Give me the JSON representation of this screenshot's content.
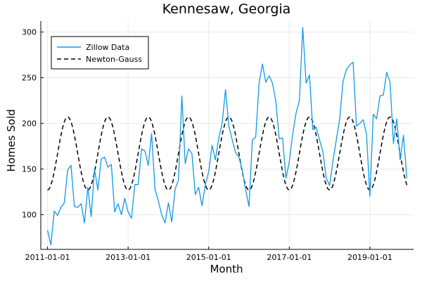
{
  "chart_data": {
    "type": "line",
    "title": "Kennesaw, Georgia",
    "xlabel": "Month",
    "ylabel": "Homes Sold",
    "x_ticks": [
      "2011-01-01",
      "2013-01-01",
      "2015-01-01",
      "2017-01-01",
      "2019-01-01"
    ],
    "y_ticks": [
      100,
      150,
      200,
      250,
      300
    ],
    "xlim": [
      "2010-11-01",
      "2020-02-01"
    ],
    "ylim": [
      62,
      312
    ],
    "grid": true,
    "legend_position": "top-left",
    "series": [
      {
        "name": "Zillow Data",
        "color": "#0f9ae6",
        "dash": "solid",
        "x": [
          "2011-01-01",
          "2011-02-01",
          "2011-03-01",
          "2011-04-01",
          "2011-05-01",
          "2011-06-01",
          "2011-07-01",
          "2011-08-01",
          "2011-09-01",
          "2011-10-01",
          "2011-11-01",
          "2011-12-01",
          "2012-01-01",
          "2012-02-01",
          "2012-03-01",
          "2012-04-01",
          "2012-05-01",
          "2012-06-01",
          "2012-07-01",
          "2012-08-01",
          "2012-09-01",
          "2012-10-01",
          "2012-11-01",
          "2012-12-01",
          "2013-01-01",
          "2013-02-01",
          "2013-03-01",
          "2013-04-01",
          "2013-05-01",
          "2013-06-01",
          "2013-07-01",
          "2013-08-01",
          "2013-09-01",
          "2013-10-01",
          "2013-11-01",
          "2013-12-01",
          "2014-01-01",
          "2014-02-01",
          "2014-03-01",
          "2014-04-01",
          "2014-05-01",
          "2014-06-01",
          "2014-07-01",
          "2014-08-01",
          "2014-09-01",
          "2014-10-01",
          "2014-11-01",
          "2014-12-01",
          "2015-01-01",
          "2015-02-01",
          "2015-03-01",
          "2015-04-01",
          "2015-05-01",
          "2015-06-01",
          "2015-07-01",
          "2015-08-01",
          "2015-09-01",
          "2015-10-01",
          "2015-11-01",
          "2015-12-01",
          "2016-01-01",
          "2016-02-01",
          "2016-03-01",
          "2016-04-01",
          "2016-05-01",
          "2016-06-01",
          "2016-07-01",
          "2016-08-01",
          "2016-09-01",
          "2016-10-01",
          "2016-11-01",
          "2016-12-01",
          "2017-01-01",
          "2017-02-01",
          "2017-03-01",
          "2017-04-01",
          "2017-05-01",
          "2017-06-01",
          "2017-07-01",
          "2017-08-01",
          "2017-09-01",
          "2017-10-01",
          "2017-11-01",
          "2017-12-01",
          "2018-01-01",
          "2018-02-01",
          "2018-03-01",
          "2018-04-01",
          "2018-05-01",
          "2018-06-01",
          "2018-07-01",
          "2018-08-01",
          "2018-09-01",
          "2018-10-01",
          "2018-11-01",
          "2018-12-01",
          "2019-01-01",
          "2019-02-01",
          "2019-03-01",
          "2019-04-01",
          "2019-05-01",
          "2019-06-01",
          "2019-07-01",
          "2019-08-01",
          "2019-09-01",
          "2019-10-01",
          "2019-11-01",
          "2019-12-01"
        ],
        "y": [
          83,
          67,
          104,
          99,
          108,
          113,
          149,
          154,
          109,
          108,
          112,
          91,
          130,
          98,
          150,
          127,
          161,
          163,
          152,
          155,
          103,
          112,
          100,
          118,
          103,
          96,
          133,
          133,
          172,
          170,
          154,
          189,
          128,
          115,
          100,
          91,
          113,
          92,
          128,
          138,
          230,
          156,
          172,
          167,
          122,
          130,
          110,
          133,
          147,
          176,
          160,
          184,
          200,
          237,
          197,
          182,
          168,
          163,
          149,
          127,
          109,
          182,
          185,
          244,
          265,
          245,
          252,
          244,
          224,
          183,
          184,
          140,
          158,
          188,
          211,
          225,
          305,
          244,
          253,
          193,
          196,
          182,
          169,
          140,
          132,
          159,
          182,
          205,
          246,
          259,
          264,
          267,
          197,
          200,
          204,
          188,
          120,
          210,
          205,
          230,
          231,
          256,
          245,
          178,
          205,
          160,
          187,
          140
        ]
      },
      {
        "name": "Newton-Gauss",
        "color": "#000000",
        "dash": "dashed",
        "mean": 167,
        "amplitude": 40,
        "period_months": 12,
        "peak_month": 7,
        "x_range": [
          "2011-01-01",
          "2019-12-01"
        ]
      }
    ]
  }
}
